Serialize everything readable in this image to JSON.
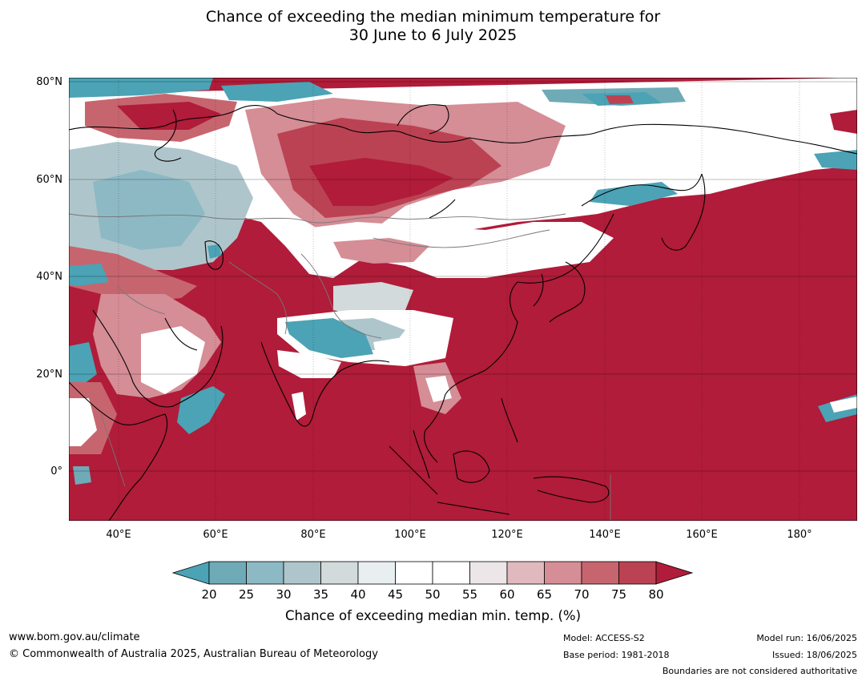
{
  "title": {
    "line1": "Chance of exceeding the median minimum temperature for",
    "line2": "30 June to 6 July 2025"
  },
  "map": {
    "lat_labels": [
      "80°N",
      "60°N",
      "40°N",
      "20°N",
      "0°"
    ],
    "lon_labels": [
      "40°E",
      "60°E",
      "80°E",
      "100°E",
      "120°E",
      "140°E",
      "160°E",
      "180°"
    ]
  },
  "colorbar": {
    "ticks": [
      "20",
      "25",
      "30",
      "35",
      "40",
      "45",
      "50",
      "55",
      "60",
      "65",
      "70",
      "75",
      "80"
    ],
    "colors": [
      "#4ba3b5",
      "#6faab7",
      "#8db9c4",
      "#aec6cb",
      "#d2dadb",
      "#e9eef0",
      "#ffffff",
      "#ffffff",
      "#ece6e8",
      "#e0b9bf",
      "#d58d96",
      "#c7656f",
      "#bb4252",
      "#b01c39"
    ],
    "label": "Chance of exceeding median min. temp. (%)"
  },
  "footer": {
    "website": "www.bom.gov.au/climate",
    "copyright": "© Commonwealth of Australia 2025, Australian Bureau of Meteorology",
    "model": "Model: ACCESS-S2",
    "base_period": "Base period: 1981-2018",
    "model_run": "Model run: 16/06/2025",
    "issued": "Issued: 18/06/2025",
    "boundaries": "Boundaries are not considered authoritative"
  }
}
